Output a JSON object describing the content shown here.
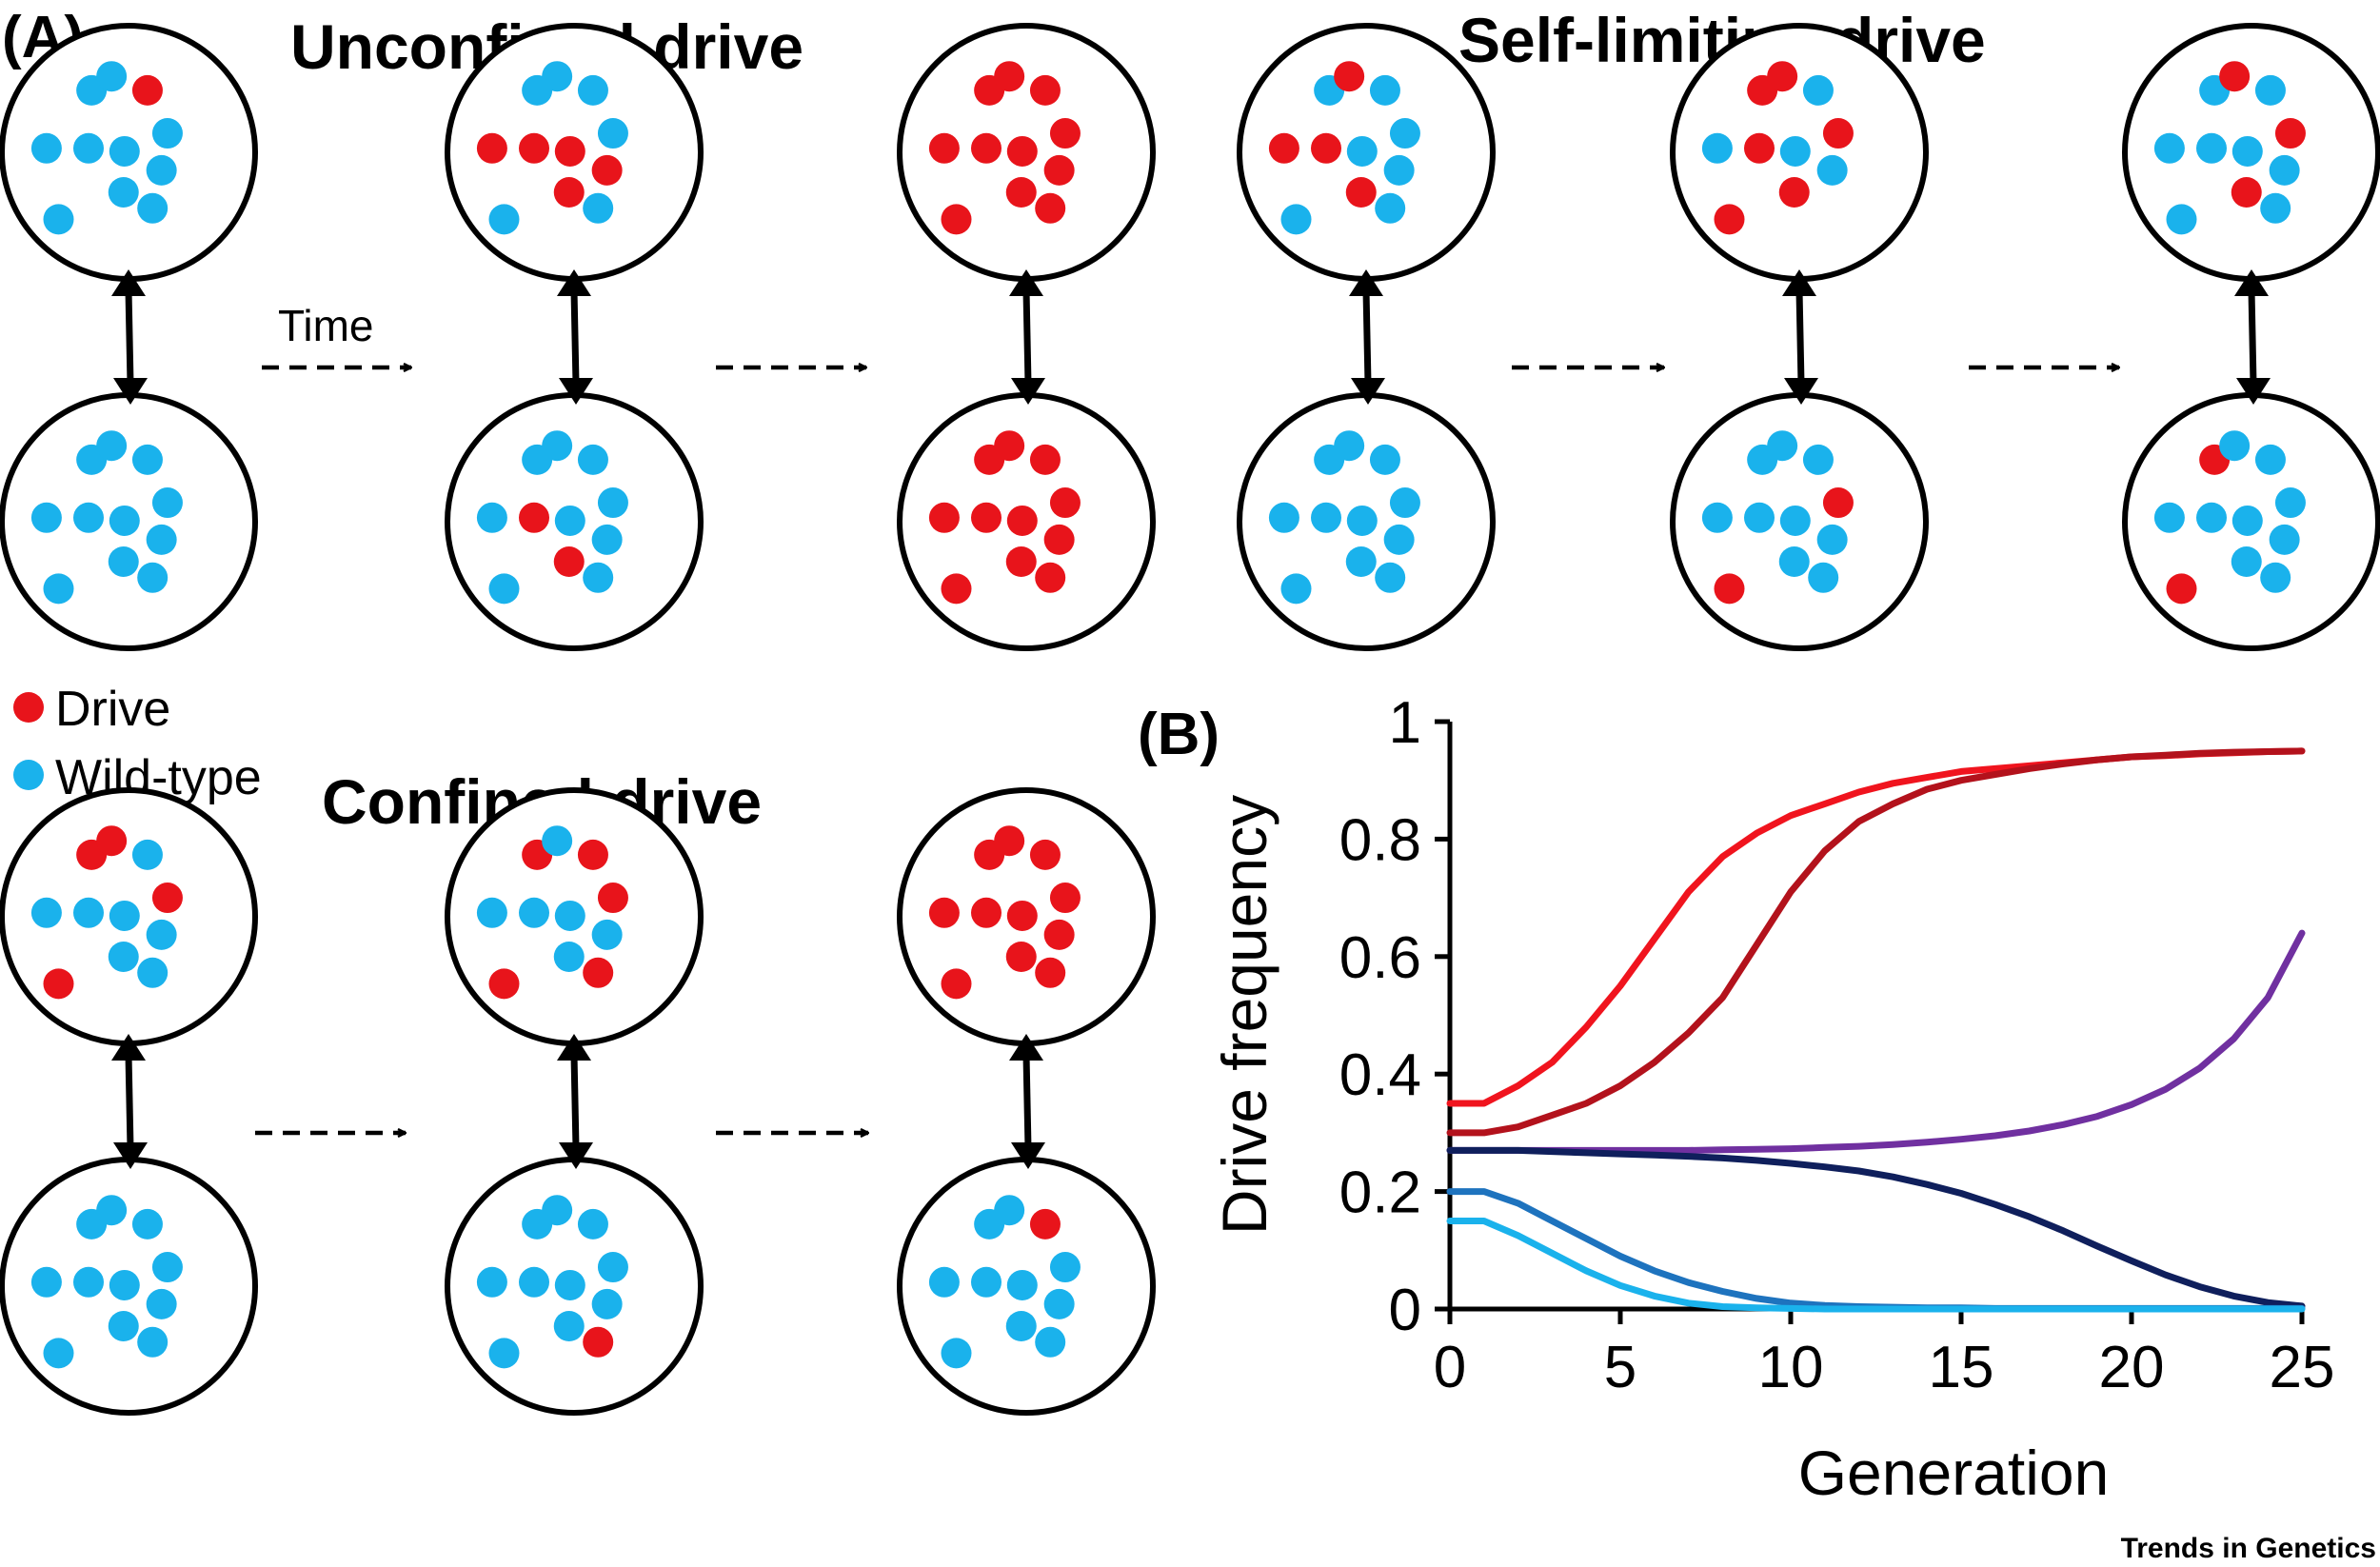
{
  "panel_a_label": "(A)",
  "panel_b_label": "(B)",
  "scenarios": {
    "unconfined": {
      "title": "Unconfined drive"
    },
    "self_limiting": {
      "title": "Self-limiting drive"
    },
    "confined": {
      "title": "Confined drive"
    }
  },
  "time_label": "Time",
  "legend": [
    {
      "label": "Drive",
      "color": "#e8141b"
    },
    {
      "label": "Wild-type",
      "color": "#1ab2ec"
    }
  ],
  "colors": {
    "drive": "#e8141b",
    "wild_type": "#1ab2ec",
    "outline": "#000000"
  },
  "population_pairs": [
    {
      "scenario": "unconfined",
      "step": 1,
      "top_drive": 1,
      "top_wild": 10,
      "bottom_drive": 0,
      "bottom_wild": 11
    },
    {
      "scenario": "unconfined",
      "step": 2,
      "top_drive": 5,
      "top_wild": 6,
      "bottom_drive": 2,
      "bottom_wild": 9
    },
    {
      "scenario": "unconfined",
      "step": 3,
      "top_drive": 11,
      "top_wild": 0,
      "bottom_drive": 11,
      "bottom_wild": 0
    },
    {
      "scenario": "self_limiting",
      "step": 1,
      "top_drive": 4,
      "top_wild": 7,
      "bottom_drive": 0,
      "bottom_wild": 11
    },
    {
      "scenario": "self_limiting",
      "step": 2,
      "top_drive": 7,
      "top_wild": 3,
      "bottom_drive": 2,
      "bottom_wild": 9
    },
    {
      "scenario": "self_limiting",
      "step": 3,
      "top_drive": 3,
      "top_wild": 8,
      "bottom_drive": 2,
      "bottom_wild": 9
    },
    {
      "scenario": "confined",
      "step": 1,
      "top_drive": 4,
      "top_wild": 7,
      "bottom_drive": 0,
      "bottom_wild": 11
    },
    {
      "scenario": "confined",
      "step": 2,
      "top_drive": 5,
      "top_wild": 6,
      "bottom_drive": 1,
      "bottom_wild": 10
    },
    {
      "scenario": "confined",
      "step": 3,
      "top_drive": 11,
      "top_wild": 0,
      "bottom_drive": 1,
      "bottom_wild": 10
    }
  ],
  "credit": "Trends in Genetics",
  "chart_data": {
    "type": "line",
    "xlabel": "Generation",
    "ylabel": "Drive frequency",
    "xlim": [
      0,
      25
    ],
    "ylim": [
      0,
      1
    ],
    "xticks": [
      0,
      5,
      10,
      15,
      20,
      25
    ],
    "yticks": [
      0,
      0.2,
      0.4,
      0.6,
      0.8,
      1
    ],
    "ytick_labels": [
      "0",
      "0.2",
      "0.4",
      "0.6",
      "0.8",
      "1"
    ],
    "grid": false,
    "x": [
      0,
      1,
      2,
      3,
      4,
      5,
      6,
      7,
      8,
      9,
      10,
      11,
      12,
      13,
      14,
      15,
      16,
      17,
      18,
      19,
      20,
      21,
      22,
      23,
      24,
      25
    ],
    "series": [
      {
        "color": "#f0141e",
        "values": [
          0.35,
          0.35,
          0.38,
          0.42,
          0.48,
          0.55,
          0.63,
          0.71,
          0.77,
          0.81,
          0.84,
          0.86,
          0.88,
          0.895,
          0.905,
          0.915,
          0.92,
          0.925,
          0.93,
          0.935,
          0.94,
          0.942,
          0.945,
          0.947,
          0.949,
          0.95
        ]
      },
      {
        "color": "#b3121c",
        "values": [
          0.3,
          0.3,
          0.31,
          0.33,
          0.35,
          0.38,
          0.42,
          0.47,
          0.53,
          0.62,
          0.71,
          0.78,
          0.83,
          0.86,
          0.885,
          0.9,
          0.91,
          0.92,
          0.928,
          0.935,
          0.94,
          0.943,
          0.946,
          0.948,
          0.949,
          0.95
        ]
      },
      {
        "color": "#7030a0",
        "values": [
          0.27,
          0.27,
          0.27,
          0.27,
          0.27,
          0.27,
          0.27,
          0.27,
          0.271,
          0.272,
          0.273,
          0.275,
          0.277,
          0.28,
          0.284,
          0.289,
          0.295,
          0.303,
          0.314,
          0.328,
          0.348,
          0.374,
          0.41,
          0.46,
          0.53,
          0.64
        ]
      },
      {
        "color": "#0f1f5c",
        "values": [
          0.27,
          0.27,
          0.27,
          0.268,
          0.266,
          0.264,
          0.262,
          0.26,
          0.257,
          0.253,
          0.248,
          0.242,
          0.235,
          0.225,
          0.212,
          0.197,
          0.178,
          0.157,
          0.133,
          0.107,
          0.082,
          0.058,
          0.038,
          0.022,
          0.011,
          0.005
        ]
      },
      {
        "color": "#1e73be",
        "values": [
          0.2,
          0.2,
          0.18,
          0.15,
          0.12,
          0.09,
          0.065,
          0.045,
          0.03,
          0.018,
          0.01,
          0.006,
          0.004,
          0.003,
          0.002,
          0.002,
          0.001,
          0.001,
          0.001,
          0.001,
          0.001,
          0.001,
          0.001,
          0.001,
          0.001,
          0.001
        ]
      },
      {
        "color": "#1ab2ec",
        "values": [
          0.15,
          0.15,
          0.125,
          0.095,
          0.065,
          0.04,
          0.022,
          0.01,
          0.004,
          0.002,
          0.001,
          0.0,
          0.0,
          0.0,
          0.0,
          0.0,
          0.0,
          0.0,
          0.0,
          0.0,
          0.0,
          0.0,
          0.0,
          0.0,
          0.0,
          0.0
        ]
      }
    ]
  }
}
